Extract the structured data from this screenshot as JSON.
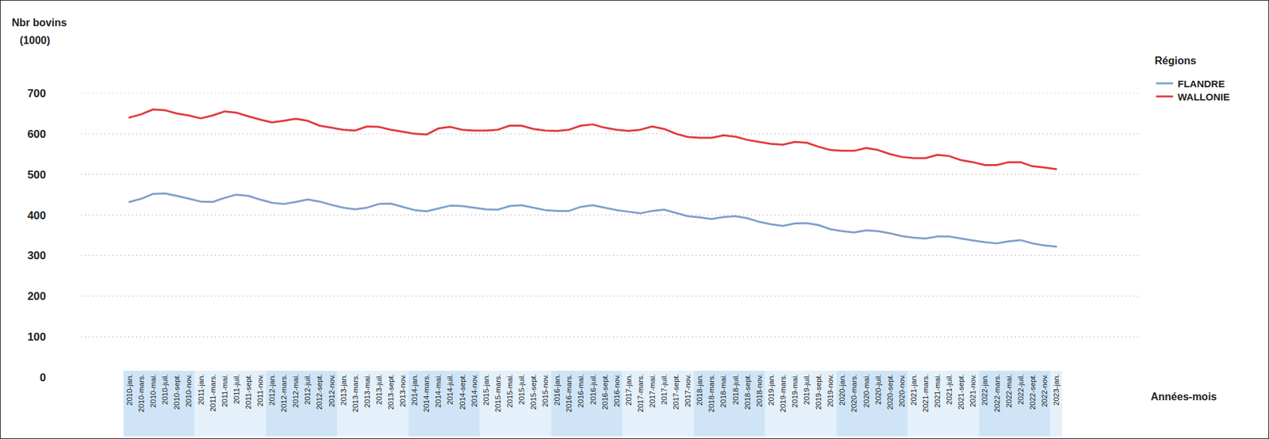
{
  "chart_data": {
    "type": "line",
    "ylabel": "Nbr bovins\n(1000)",
    "xlabel": "Années-mois",
    "legend_title": "Régions",
    "legend": "right",
    "grid": true,
    "ylim": [
      0,
      700
    ],
    "yticks": [
      0,
      100,
      200,
      300,
      400,
      500,
      600,
      700
    ],
    "categories": [
      "2010-jan.",
      "2010-mars.",
      "2010-mai.",
      "2010-juil.",
      "2010-sept.",
      "2010-nov.",
      "2011-jan.",
      "2011-mars.",
      "2011-mai.",
      "2011-juil.",
      "2011-sept.",
      "2011-nov.",
      "2012-jan.",
      "2012-mars.",
      "2012-mai.",
      "2012-juil.",
      "2012-sept.",
      "2012-nov.",
      "2013-jan.",
      "2013-mars.",
      "2013-mai.",
      "2013-juil.",
      "2013-sept.",
      "2013-nov.",
      "2014-jan.",
      "2014-mars.",
      "2014-mai.",
      "2014-juil.",
      "2014-sept.",
      "2014-nov.",
      "2015-jan.",
      "2015-mars.",
      "2015-mai.",
      "2015-juil.",
      "2015-sept.",
      "2015-nov.",
      "2016-jan.",
      "2016-mars.",
      "2016-mai.",
      "2016-juil.",
      "2016-sept.",
      "2016-nov.",
      "2017-jan.",
      "2017-mars.",
      "2017-mai.",
      "2017-juil.",
      "2017-sept.",
      "2017-nov.",
      "2018-jan.",
      "2018-mars.",
      "2018-mai.",
      "2018-juil.",
      "2018-sept.",
      "2018-nov.",
      "2019-jan.",
      "2019-mars.",
      "2019-mai.",
      "2019-juil.",
      "2019-sept.",
      "2019-nov.",
      "2020-jan.",
      "2020-mars.",
      "2020-mai.",
      "2020-juil.",
      "2020-sept.",
      "2020-nov.",
      "2021-jan.",
      "2021-mars.",
      "2021-mai.",
      "2021-juil.",
      "2021-sept.",
      "2021-nov.",
      "2022-jan.",
      "2022-mars.",
      "2022-mai.",
      "2022-juil.",
      "2022-sept.",
      "2022-nov.",
      "2023-jan."
    ],
    "series": [
      {
        "name": "FLANDRE",
        "color": "#7fa1cb",
        "values": [
          432,
          440,
          452,
          453,
          447,
          440,
          433,
          432,
          442,
          450,
          447,
          438,
          430,
          427,
          432,
          438,
          433,
          425,
          418,
          414,
          418,
          427,
          428,
          420,
          412,
          409,
          416,
          423,
          422,
          418,
          414,
          413,
          422,
          424,
          418,
          412,
          410,
          410,
          420,
          424,
          418,
          412,
          408,
          404,
          410,
          413,
          405,
          397,
          394,
          390,
          395,
          397,
          392,
          383,
          377,
          373,
          379,
          380,
          375,
          365,
          360,
          357,
          362,
          360,
          355,
          348,
          344,
          342,
          347,
          347,
          342,
          337,
          333,
          330,
          335,
          338,
          330,
          325,
          322
        ]
      },
      {
        "name": "WALLONIE",
        "color": "#e23a3f",
        "values": [
          640,
          648,
          660,
          658,
          650,
          645,
          638,
          645,
          655,
          652,
          643,
          635,
          628,
          632,
          637,
          632,
          620,
          615,
          610,
          608,
          618,
          617,
          610,
          605,
          600,
          598,
          613,
          617,
          610,
          608,
          608,
          610,
          620,
          620,
          612,
          608,
          607,
          610,
          620,
          623,
          615,
          610,
          607,
          610,
          618,
          612,
          600,
          592,
          590,
          590,
          596,
          593,
          585,
          580,
          575,
          573,
          580,
          578,
          568,
          560,
          558,
          558,
          565,
          560,
          550,
          543,
          540,
          540,
          548,
          545,
          535,
          530,
          523,
          523,
          530,
          530,
          520,
          517,
          513
        ]
      }
    ]
  }
}
